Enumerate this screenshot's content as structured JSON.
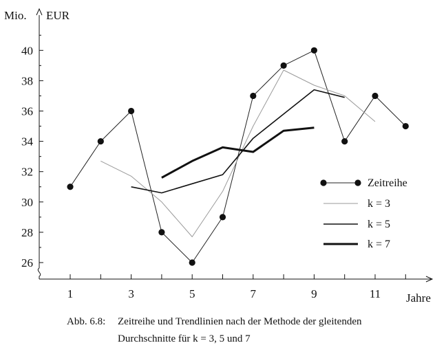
{
  "chart_data": {
    "type": "line",
    "y_unit_top": "Mio.",
    "y_unit_right": "EUR",
    "xlabel": "Jahre",
    "x_ticks_labeled": [
      1,
      3,
      5,
      7,
      9,
      11
    ],
    "x_ticks": [
      1,
      2,
      3,
      4,
      5,
      6,
      7,
      8,
      9,
      10,
      11,
      12
    ],
    "y_ticks": [
      26,
      28,
      30,
      32,
      34,
      36,
      38,
      40
    ],
    "xlim": [
      0,
      13
    ],
    "ylim": [
      25,
      42
    ],
    "series": [
      {
        "name": "Zeitreihe",
        "style": "thin-markers",
        "x": [
          1,
          2,
          3,
          4,
          5,
          6,
          7,
          8,
          9,
          10,
          11,
          12
        ],
        "y": [
          31,
          34,
          36,
          28,
          26,
          29,
          37,
          39,
          40,
          34,
          37,
          35
        ]
      },
      {
        "name": "k = 3",
        "style": "thin-gray",
        "x": [
          2,
          3,
          4,
          5,
          6,
          7,
          8,
          9,
          10,
          11
        ],
        "y": [
          32.7,
          31.7,
          30.0,
          27.7,
          30.7,
          35.0,
          38.7,
          37.7,
          37.0,
          35.3
        ]
      },
      {
        "name": "k = 5",
        "style": "medium",
        "x": [
          3,
          4,
          5,
          6,
          7,
          8,
          9,
          10
        ],
        "y": [
          31.0,
          30.6,
          31.2,
          31.8,
          34.2,
          35.8,
          37.4,
          36.9
        ]
      },
      {
        "name": "k = 7",
        "style": "thick",
        "x": [
          4,
          5,
          6,
          7,
          8,
          9
        ],
        "y": [
          31.6,
          32.7,
          33.6,
          33.3,
          34.7,
          34.9
        ]
      }
    ],
    "legend_position": "right"
  },
  "caption": {
    "label": "Abb. 6.8:",
    "line1": "Zeitreihe und Trendlinien nach der Methode der gleitenden",
    "line2": "Durchschnitte für k = 3, 5 und 7"
  }
}
